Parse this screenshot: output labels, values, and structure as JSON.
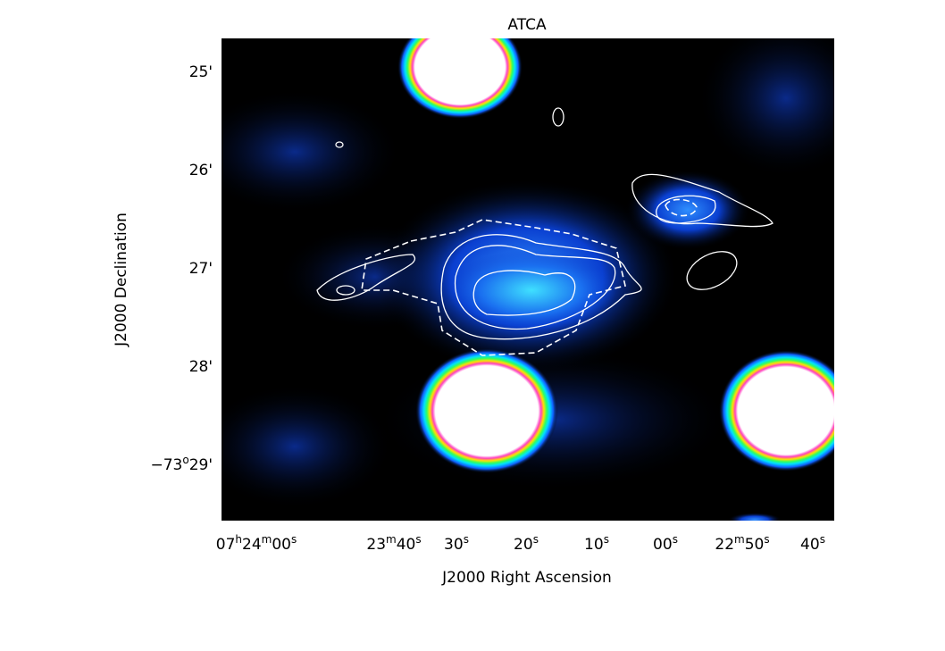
{
  "title": "ATCA",
  "x_axis": {
    "label": "J2000 Right Ascension",
    "ticks": [
      [
        "07",
        "h",
        "24",
        "m",
        "00",
        "s"
      ],
      [
        "23",
        "m",
        "40",
        "s"
      ],
      [
        "30",
        "s"
      ],
      [
        "20",
        "s"
      ],
      [
        "10",
        "s"
      ],
      [
        "00",
        "s"
      ],
      [
        "22",
        "m",
        "50",
        "s"
      ],
      [
        "40",
        "s"
      ]
    ]
  },
  "y_axis": {
    "label": "J2000 Declination",
    "ticks": [
      [
        "25'"
      ],
      [
        "26'"
      ],
      [
        "27'"
      ],
      [
        "28'"
      ],
      [
        "−73",
        "o",
        "29'"
      ]
    ]
  }
}
